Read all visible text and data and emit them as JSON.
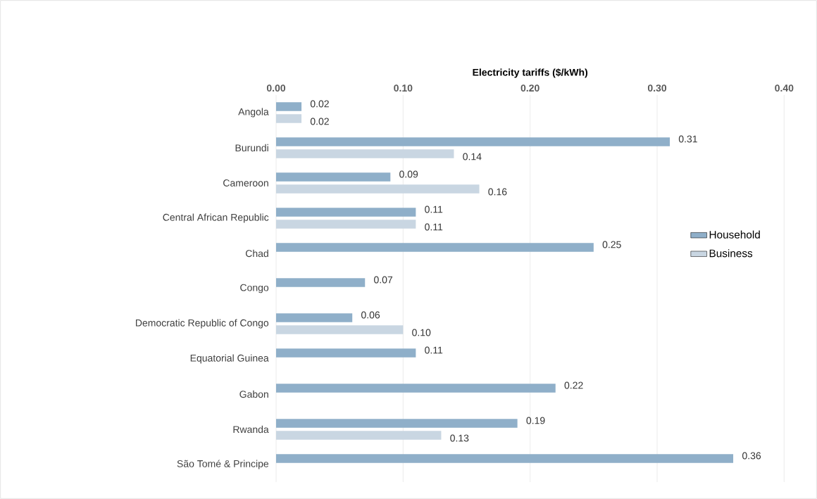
{
  "chart_data": {
    "type": "bar",
    "orientation": "horizontal",
    "xlabel": "Electricity tariffs ($/kWh)",
    "categories": [
      "Angola",
      "Burundi",
      "Cameroon",
      "Central African Republic",
      "Chad",
      "Congo",
      "Democratic Republic of Congo",
      "Equatorial Guinea",
      "Gabon",
      "Rwanda",
      "São Tomé & Principe"
    ],
    "series": [
      {
        "name": "Household",
        "color": "#8fafc9",
        "values": [
          0.02,
          0.31,
          0.09,
          0.11,
          0.25,
          0.07,
          0.06,
          0.11,
          0.22,
          0.19,
          0.36
        ],
        "value_labels": [
          "0.02",
          "0.31",
          "0.09",
          "0.11",
          "0.25",
          "0.07",
          "0.06",
          "0.11",
          "0.22",
          "0.19",
          "0.36"
        ]
      },
      {
        "name": "Business",
        "color": "#c9d6e2",
        "values": [
          0.02,
          0.14,
          0.16,
          0.11,
          null,
          null,
          0.1,
          null,
          null,
          0.13,
          null
        ],
        "value_labels": [
          "0.02",
          "0.14",
          "0.16",
          "0.11",
          null,
          null,
          "0.10",
          null,
          null,
          "0.13",
          null
        ]
      }
    ],
    "xlim": [
      0,
      0.4
    ],
    "xticks": [
      {
        "value": 0,
        "label": "0.00"
      },
      {
        "value": 0.1,
        "label": "0.10"
      },
      {
        "value": 0.2,
        "label": "0.20"
      },
      {
        "value": 0.3,
        "label": "0.30"
      },
      {
        "value": 0.4,
        "label": "0.40"
      }
    ],
    "grid": "x",
    "legend": "right"
  }
}
